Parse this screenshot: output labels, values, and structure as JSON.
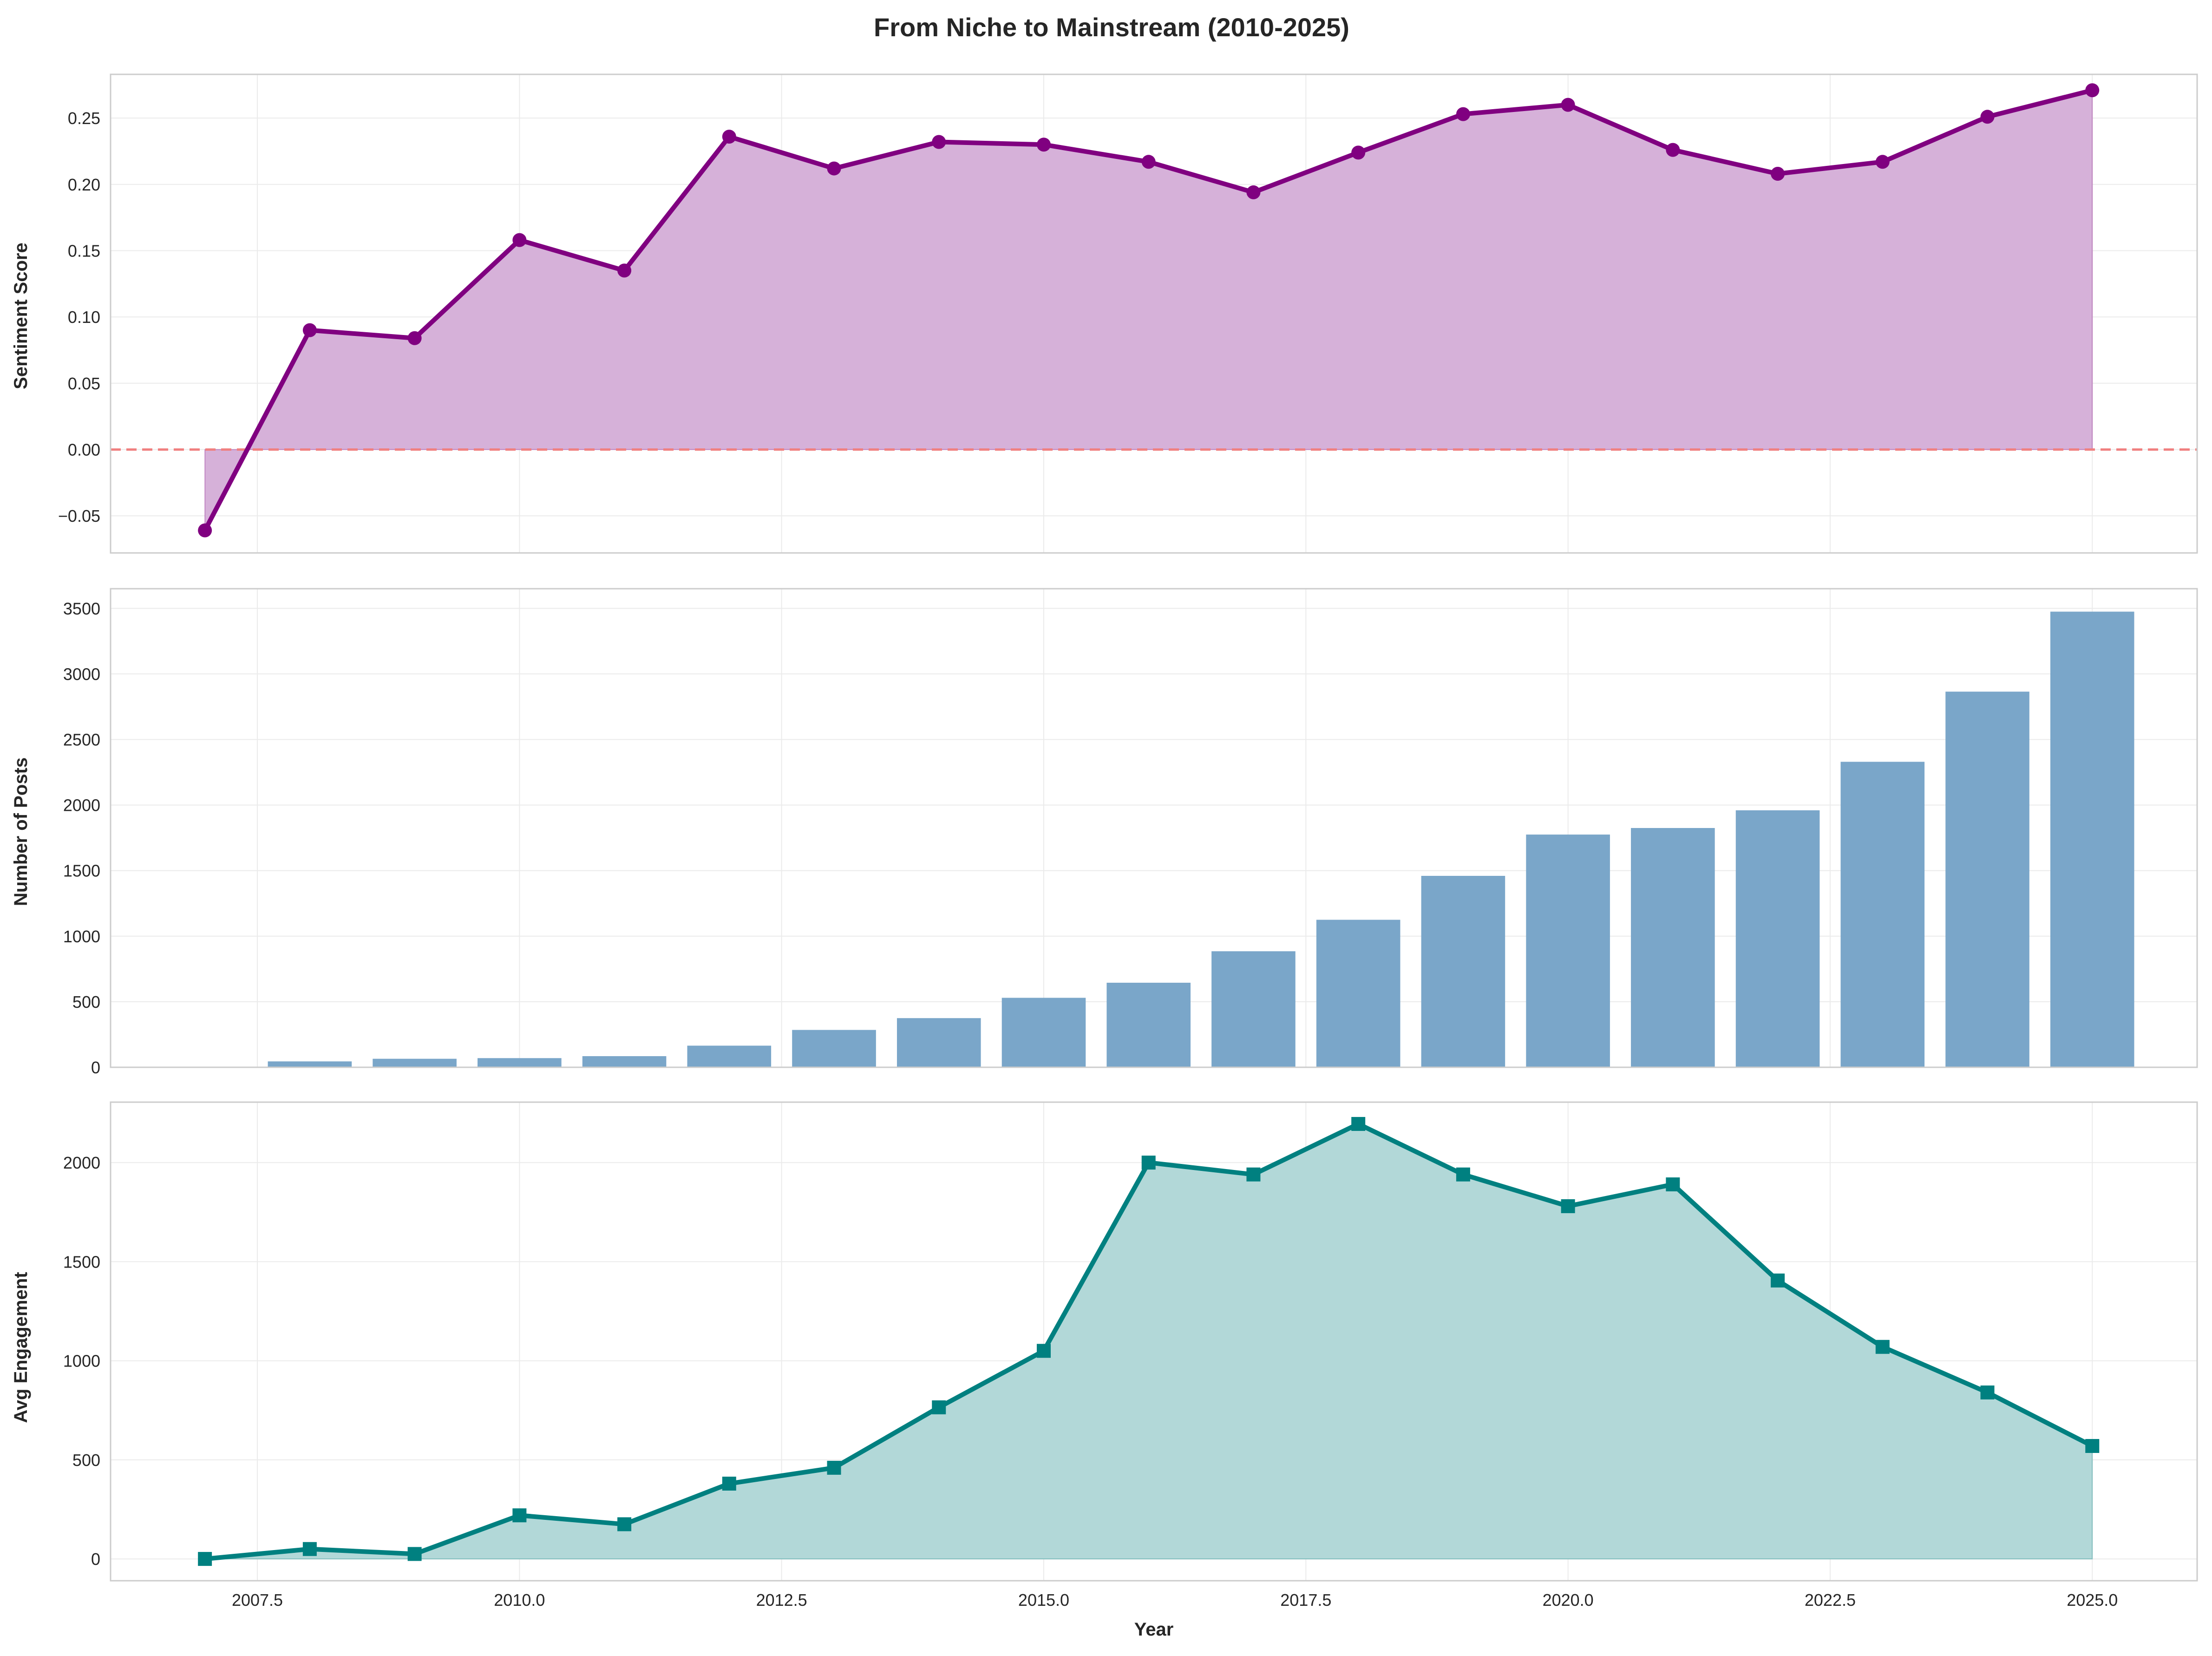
{
  "title": "From Niche to Mainstream (2010-2025)",
  "colors": {
    "sentiment": "#800080",
    "sentiment_fill": "#d6b1d9",
    "posts": "#7aa6c9",
    "engagement": "#008080",
    "engagement_fill": "#b2d8d8",
    "zero_line": "#f08080",
    "grid": "#ebebeb",
    "spine": "#cccccc"
  },
  "chart_data": [
    {
      "type": "area",
      "ylabel": "Sentiment Score",
      "x": [
        2007,
        2008,
        2009,
        2010,
        2011,
        2012,
        2013,
        2014,
        2015,
        2016,
        2017,
        2018,
        2019,
        2020,
        2021,
        2022,
        2023,
        2024,
        2025
      ],
      "values": [
        -0.061,
        0.09,
        0.084,
        0.158,
        0.135,
        0.236,
        0.212,
        0.232,
        0.23,
        0.217,
        0.194,
        0.224,
        0.253,
        0.26,
        0.226,
        0.208,
        0.217,
        0.251,
        0.271
      ],
      "ylim": [
        -0.078,
        0.283
      ],
      "yticks": [
        "0.25",
        "0.20",
        "0.15",
        "0.10",
        "0.05",
        "0.00",
        "−0.05"
      ],
      "ytick_values": [
        0.25,
        0.2,
        0.15,
        0.1,
        0.05,
        0.0,
        -0.05
      ],
      "reference_line": 0,
      "marker": "circle",
      "grid": true
    },
    {
      "type": "bar",
      "ylabel": "Number of Posts",
      "x": [
        2007,
        2008,
        2009,
        2010,
        2011,
        2012,
        2013,
        2014,
        2015,
        2016,
        2017,
        2018,
        2019,
        2020,
        2021,
        2022,
        2023,
        2024,
        2025
      ],
      "values": [
        5,
        45,
        65,
        70,
        85,
        165,
        285,
        375,
        530,
        645,
        885,
        1125,
        1460,
        1775,
        1825,
        1960,
        2330,
        2865,
        3475
      ],
      "ylim": [
        0,
        3650
      ],
      "yticks": [
        "3500",
        "3000",
        "2500",
        "2000",
        "1500",
        "1000",
        "500",
        "0"
      ],
      "ytick_values": [
        3500,
        3000,
        2500,
        2000,
        1500,
        1000,
        500,
        0
      ],
      "grid": true
    },
    {
      "type": "area",
      "ylabel": "Avg Engagement",
      "xlabel": "Year",
      "x": [
        2007,
        2008,
        2009,
        2010,
        2011,
        2012,
        2013,
        2014,
        2015,
        2016,
        2017,
        2018,
        2019,
        2020,
        2021,
        2022,
        2023,
        2024,
        2025
      ],
      "values": [
        0,
        50,
        25,
        220,
        175,
        380,
        460,
        765,
        1050,
        2000,
        1940,
        2195,
        1940,
        1780,
        1890,
        1405,
        1070,
        840,
        570
      ],
      "ylim": [
        -110,
        2305
      ],
      "yticks": [
        "2000",
        "1500",
        "1000",
        "500",
        "0"
      ],
      "ytick_values": [
        2000,
        1500,
        1000,
        500,
        0
      ],
      "xticks": [
        "2007.5",
        "2010.0",
        "2012.5",
        "2015.0",
        "2017.5",
        "2020.0",
        "2022.5",
        "2025.0"
      ],
      "xtick_values": [
        2007.5,
        2010.0,
        2012.5,
        2015.0,
        2017.5,
        2020.0,
        2022.5,
        2025.0
      ],
      "marker": "square",
      "grid": true
    }
  ]
}
